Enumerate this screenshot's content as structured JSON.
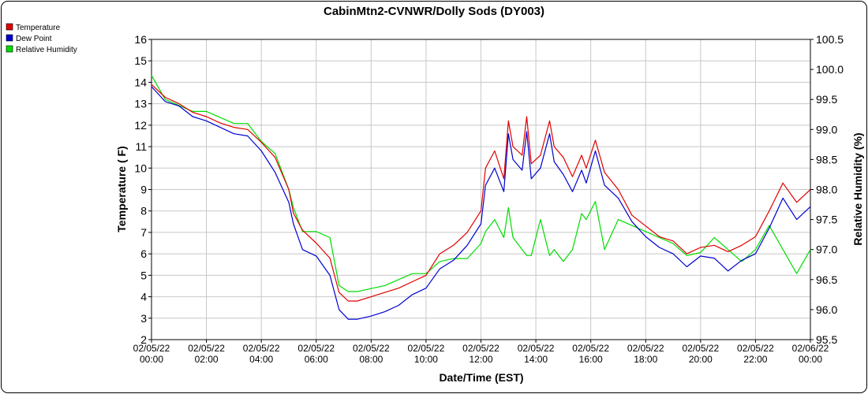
{
  "chart_data": {
    "type": "line",
    "title": "CabinMtn2-CVNWR/Dolly Sods (DY003)",
    "xlabel": "Date/Time (EST)",
    "ylabel_left": "Temperature ( F)",
    "ylabel_right": "Relative Humidity (%)",
    "ylim_left": [
      2,
      16
    ],
    "ylim_right": [
      95.5,
      100.5
    ],
    "yticks_left": [
      "2",
      "3",
      "4",
      "5",
      "6",
      "7",
      "8",
      "9",
      "10",
      "11",
      "12",
      "13",
      "14",
      "15",
      "16"
    ],
    "yticks_right": [
      "95.5",
      "96.0",
      "96.5",
      "97.0",
      "97.5",
      "98.0",
      "98.5",
      "99.0",
      "99.5",
      "100.0",
      "100.5"
    ],
    "x_ticks": [
      {
        "date": "02/05/22",
        "time": "00:00"
      },
      {
        "date": "02/05/22",
        "time": "02:00"
      },
      {
        "date": "02/05/22",
        "time": "04:00"
      },
      {
        "date": "02/05/22",
        "time": "06:00"
      },
      {
        "date": "02/05/22",
        "time": "08:00"
      },
      {
        "date": "02/05/22",
        "time": "10:00"
      },
      {
        "date": "02/05/22",
        "time": "12:00"
      },
      {
        "date": "02/05/22",
        "time": "14:00"
      },
      {
        "date": "02/05/22",
        "time": "16:00"
      },
      {
        "date": "02/05/22",
        "time": "18:00"
      },
      {
        "date": "02/05/22",
        "time": "20:00"
      },
      {
        "date": "02/05/22",
        "time": "22:00"
      },
      {
        "date": "02/06/22",
        "time": "00:00"
      }
    ],
    "grid": true,
    "legend_position": "top-left",
    "series": [
      {
        "name": "Temperature",
        "axis": "left",
        "color": "#e00000",
        "points": [
          [
            "02/05/22 00:00",
            13.9
          ],
          [
            "02/05/22 00:30",
            13.3
          ],
          [
            "02/05/22 01:00",
            13.0
          ],
          [
            "02/05/22 01:30",
            12.6
          ],
          [
            "02/05/22 02:00",
            12.4
          ],
          [
            "02/05/22 02:30",
            12.1
          ],
          [
            "02/05/22 03:00",
            11.9
          ],
          [
            "02/05/22 03:30",
            11.8
          ],
          [
            "02/05/22 04:00",
            11.2
          ],
          [
            "02/05/22 04:30",
            10.5
          ],
          [
            "02/05/22 05:00",
            9.0
          ],
          [
            "02/05/22 05:10",
            7.9
          ],
          [
            "02/05/22 05:30",
            7.1
          ],
          [
            "02/05/22 06:00",
            6.5
          ],
          [
            "02/05/22 06:30",
            5.8
          ],
          [
            "02/05/22 06:50",
            4.2
          ],
          [
            "02/05/22 07:10",
            3.8
          ],
          [
            "02/05/22 07:30",
            3.8
          ],
          [
            "02/05/22 08:00",
            4.0
          ],
          [
            "02/05/22 08:30",
            4.2
          ],
          [
            "02/05/22 09:00",
            4.4
          ],
          [
            "02/05/22 09:30",
            4.7
          ],
          [
            "02/05/22 10:00",
            5.0
          ],
          [
            "02/05/22 10:30",
            6.0
          ],
          [
            "02/05/22 11:00",
            6.4
          ],
          [
            "02/05/22 11:30",
            7.0
          ],
          [
            "02/05/22 12:00",
            8.0
          ],
          [
            "02/05/22 12:10",
            10.0
          ],
          [
            "02/05/22 12:30",
            10.8
          ],
          [
            "02/05/22 12:50",
            9.5
          ],
          [
            "02/05/22 13:00",
            12.2
          ],
          [
            "02/05/22 13:10",
            11.0
          ],
          [
            "02/05/22 13:30",
            10.6
          ],
          [
            "02/05/22 13:40",
            12.4
          ],
          [
            "02/05/22 13:50",
            10.2
          ],
          [
            "02/05/22 14:10",
            10.6
          ],
          [
            "02/05/22 14:30",
            12.2
          ],
          [
            "02/05/22 14:40",
            11.0
          ],
          [
            "02/05/22 15:00",
            10.5
          ],
          [
            "02/05/22 15:20",
            9.6
          ],
          [
            "02/05/22 15:40",
            10.6
          ],
          [
            "02/05/22 15:50",
            10.0
          ],
          [
            "02/05/22 16:10",
            11.3
          ],
          [
            "02/05/22 16:30",
            9.8
          ],
          [
            "02/05/22 17:00",
            9.0
          ],
          [
            "02/05/22 17:30",
            7.8
          ],
          [
            "02/05/22 18:00",
            7.3
          ],
          [
            "02/05/22 18:30",
            6.8
          ],
          [
            "02/05/22 19:00",
            6.6
          ],
          [
            "02/05/22 19:30",
            6.0
          ],
          [
            "02/05/22 20:00",
            6.3
          ],
          [
            "02/05/22 20:30",
            6.4
          ],
          [
            "02/05/22 21:00",
            6.1
          ],
          [
            "02/05/22 21:30",
            6.4
          ],
          [
            "02/05/22 22:00",
            6.8
          ],
          [
            "02/05/22 22:30",
            8.0
          ],
          [
            "02/05/22 23:00",
            9.3
          ],
          [
            "02/05/22 23:30",
            8.4
          ],
          [
            "02/06/22 00:00",
            9.0
          ]
        ]
      },
      {
        "name": "Dew Point",
        "axis": "left",
        "color": "#0000d0",
        "points": [
          [
            "02/05/22 00:00",
            13.8
          ],
          [
            "02/05/22 00:30",
            13.1
          ],
          [
            "02/05/22 01:00",
            12.9
          ],
          [
            "02/05/22 01:30",
            12.4
          ],
          [
            "02/05/22 02:00",
            12.2
          ],
          [
            "02/05/22 02:30",
            11.9
          ],
          [
            "02/05/22 03:00",
            11.6
          ],
          [
            "02/05/22 03:30",
            11.5
          ],
          [
            "02/05/22 04:00",
            10.8
          ],
          [
            "02/05/22 04:30",
            9.8
          ],
          [
            "02/05/22 05:00",
            8.4
          ],
          [
            "02/05/22 05:10",
            7.4
          ],
          [
            "02/05/22 05:30",
            6.2
          ],
          [
            "02/05/22 06:00",
            5.9
          ],
          [
            "02/05/22 06:30",
            5.0
          ],
          [
            "02/05/22 06:50",
            3.4
          ],
          [
            "02/05/22 07:10",
            2.95
          ],
          [
            "02/05/22 07:30",
            2.95
          ],
          [
            "02/05/22 08:00",
            3.1
          ],
          [
            "02/05/22 08:30",
            3.3
          ],
          [
            "02/05/22 09:00",
            3.6
          ],
          [
            "02/05/22 09:30",
            4.1
          ],
          [
            "02/05/22 10:00",
            4.4
          ],
          [
            "02/05/22 10:30",
            5.3
          ],
          [
            "02/05/22 11:00",
            5.7
          ],
          [
            "02/05/22 11:30",
            6.4
          ],
          [
            "02/05/22 12:00",
            7.4
          ],
          [
            "02/05/22 12:10",
            9.2
          ],
          [
            "02/05/22 12:30",
            10.0
          ],
          [
            "02/05/22 12:50",
            8.9
          ],
          [
            "02/05/22 13:00",
            11.6
          ],
          [
            "02/05/22 13:10",
            10.4
          ],
          [
            "02/05/22 13:30",
            9.9
          ],
          [
            "02/05/22 13:40",
            11.7
          ],
          [
            "02/05/22 13:50",
            9.5
          ],
          [
            "02/05/22 14:10",
            10.0
          ],
          [
            "02/05/22 14:30",
            11.6
          ],
          [
            "02/05/22 14:40",
            10.3
          ],
          [
            "02/05/22 15:00",
            9.7
          ],
          [
            "02/05/22 15:20",
            8.9
          ],
          [
            "02/05/22 15:40",
            9.9
          ],
          [
            "02/05/22 15:50",
            9.3
          ],
          [
            "02/05/22 16:10",
            10.8
          ],
          [
            "02/05/22 16:30",
            9.2
          ],
          [
            "02/05/22 17:00",
            8.6
          ],
          [
            "02/05/22 17:30",
            7.5
          ],
          [
            "02/05/22 18:00",
            6.8
          ],
          [
            "02/05/22 18:30",
            6.3
          ],
          [
            "02/05/22 19:00",
            6.0
          ],
          [
            "02/05/22 19:30",
            5.4
          ],
          [
            "02/05/22 20:00",
            5.9
          ],
          [
            "02/05/22 20:30",
            5.8
          ],
          [
            "02/05/22 21:00",
            5.2
          ],
          [
            "02/05/22 21:30",
            5.7
          ],
          [
            "02/05/22 22:00",
            6.0
          ],
          [
            "02/05/22 22:30",
            7.2
          ],
          [
            "02/05/22 23:00",
            8.6
          ],
          [
            "02/05/22 23:30",
            7.6
          ],
          [
            "02/06/22 00:00",
            8.2
          ]
        ]
      },
      {
        "name": "Relative Humidity",
        "axis": "right",
        "color": "#00dd00",
        "points": [
          [
            "02/05/22 00:00",
            99.9
          ],
          [
            "02/05/22 00:30",
            99.5
          ],
          [
            "02/05/22 01:00",
            99.4
          ],
          [
            "02/05/22 01:30",
            99.3
          ],
          [
            "02/05/22 02:00",
            99.3
          ],
          [
            "02/05/22 02:30",
            99.2
          ],
          [
            "02/05/22 03:00",
            99.1
          ],
          [
            "02/05/22 03:30",
            99.1
          ],
          [
            "02/05/22 04:00",
            98.8
          ],
          [
            "02/05/22 04:30",
            98.6
          ],
          [
            "02/05/22 05:00",
            98.0
          ],
          [
            "02/05/22 05:10",
            97.7
          ],
          [
            "02/05/22 05:30",
            97.3
          ],
          [
            "02/05/22 06:00",
            97.3
          ],
          [
            "02/05/22 06:30",
            97.2
          ],
          [
            "02/05/22 06:50",
            96.4
          ],
          [
            "02/05/22 07:10",
            96.3
          ],
          [
            "02/05/22 07:30",
            96.3
          ],
          [
            "02/05/22 08:00",
            96.35
          ],
          [
            "02/05/22 08:30",
            96.4
          ],
          [
            "02/05/22 09:00",
            96.5
          ],
          [
            "02/05/22 09:30",
            96.6
          ],
          [
            "02/05/22 10:00",
            96.6
          ],
          [
            "02/05/22 10:30",
            96.8
          ],
          [
            "02/05/22 11:00",
            96.85
          ],
          [
            "02/05/22 11:30",
            96.85
          ],
          [
            "02/05/22 12:00",
            97.1
          ],
          [
            "02/05/22 12:10",
            97.3
          ],
          [
            "02/05/22 12:30",
            97.5
          ],
          [
            "02/05/22 12:50",
            97.2
          ],
          [
            "02/05/22 13:00",
            97.7
          ],
          [
            "02/05/22 13:10",
            97.2
          ],
          [
            "02/05/22 13:30",
            97.0
          ],
          [
            "02/05/22 13:40",
            96.9
          ],
          [
            "02/05/22 13:50",
            96.9
          ],
          [
            "02/05/22 14:10",
            97.5
          ],
          [
            "02/05/22 14:30",
            96.9
          ],
          [
            "02/05/22 14:40",
            97.0
          ],
          [
            "02/05/22 15:00",
            96.8
          ],
          [
            "02/05/22 15:20",
            97.0
          ],
          [
            "02/05/22 15:40",
            97.6
          ],
          [
            "02/05/22 15:50",
            97.5
          ],
          [
            "02/05/22 16:10",
            97.8
          ],
          [
            "02/05/22 16:30",
            97.0
          ],
          [
            "02/05/22 17:00",
            97.5
          ],
          [
            "02/05/22 17:30",
            97.4
          ],
          [
            "02/05/22 18:00",
            97.3
          ],
          [
            "02/05/22 18:30",
            97.2
          ],
          [
            "02/05/22 19:00",
            97.1
          ],
          [
            "02/05/22 19:30",
            96.9
          ],
          [
            "02/05/22 20:00",
            96.95
          ],
          [
            "02/05/22 20:30",
            97.2
          ],
          [
            "02/05/22 21:00",
            97.0
          ],
          [
            "02/05/22 21:30",
            96.8
          ],
          [
            "02/05/22 22:00",
            97.0
          ],
          [
            "02/05/22 22:30",
            97.4
          ],
          [
            "02/05/22 23:00",
            97.0
          ],
          [
            "02/05/22 23:30",
            96.6
          ],
          [
            "02/06/22 00:00",
            97.0
          ]
        ]
      }
    ]
  }
}
